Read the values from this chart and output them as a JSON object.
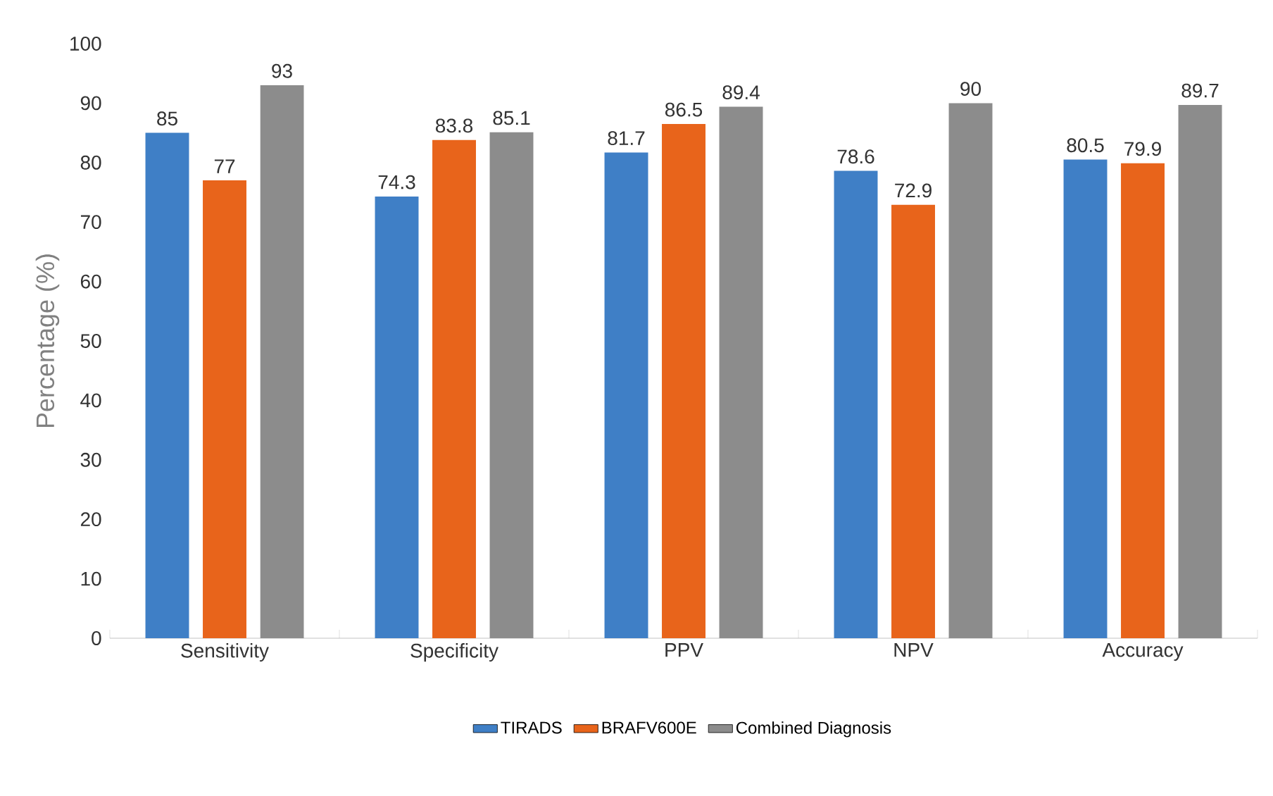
{
  "chart_data": {
    "type": "bar",
    "ylabel": "Percentage (%)",
    "categories": [
      "Sensitivity",
      "Specificity",
      "PPV",
      "NPV",
      "Accuracy"
    ],
    "series": [
      {
        "name": "TIRADS",
        "color": "#3f7fc6",
        "values": [
          85,
          74.3,
          81.7,
          78.6,
          80.5
        ]
      },
      {
        "name": "BRAFV600E",
        "color": "#e8641b",
        "values": [
          77,
          83.8,
          86.5,
          72.9,
          79.9
        ]
      },
      {
        "name": "Combined Diagnosis",
        "color": "#8c8c8c",
        "values": [
          93,
          85.1,
          89.4,
          90,
          89.7
        ]
      }
    ],
    "ylim": [
      0,
      100
    ],
    "yticks": [
      0,
      10,
      20,
      30,
      40,
      50,
      60,
      70,
      80,
      90,
      100
    ],
    "data_labels": true,
    "legend": "bottom",
    "grid": false
  }
}
